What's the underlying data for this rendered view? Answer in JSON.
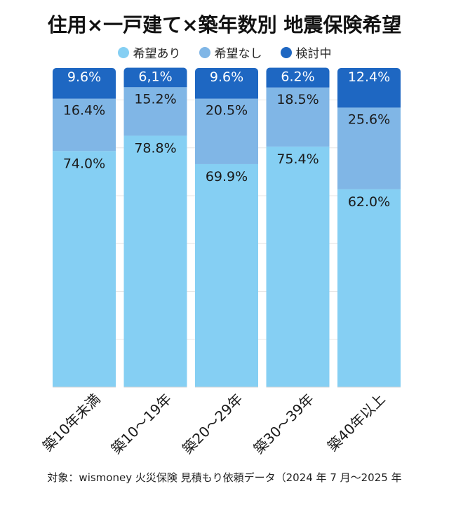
{
  "chart_data": {
    "type": "bar",
    "stacked": true,
    "title": "住用×一戸建て×築年数別 地震保険希望",
    "categories": [
      "築10年未満",
      "築10〜19年",
      "築20〜29年",
      "築30〜39年",
      "築40年以上"
    ],
    "series": [
      {
        "name": "希望あり",
        "color": "#85cff3",
        "values": [
          74.0,
          78.8,
          69.9,
          75.4,
          62.0
        ],
        "labels": [
          "74.0%",
          "78.8%",
          "69.9%",
          "75.4%",
          "62.0%"
        ]
      },
      {
        "name": "希望なし",
        "color": "#80b6e6",
        "values": [
          16.4,
          15.2,
          20.5,
          18.5,
          25.6
        ],
        "labels": [
          "16.4%",
          "15.2%",
          "20.5%",
          "18.5%",
          "25.6%"
        ]
      },
      {
        "name": "検討中",
        "color": "#1e67c2",
        "values": [
          9.6,
          6.1,
          9.6,
          6.2,
          12.4
        ],
        "labels": [
          "9.6%",
          "6,1%",
          "9.6%",
          "6.2%",
          "12.4%"
        ]
      }
    ],
    "legend_position": "top-center",
    "grid": true,
    "source": "対象：wismoney 火災保険 見積もり依頼データ（2024 年 7 月〜2025 年"
  },
  "colors": {
    "grid": "#e6e6e6",
    "label_light": "#ffffff",
    "label_dark": "#1a1a1a"
  }
}
